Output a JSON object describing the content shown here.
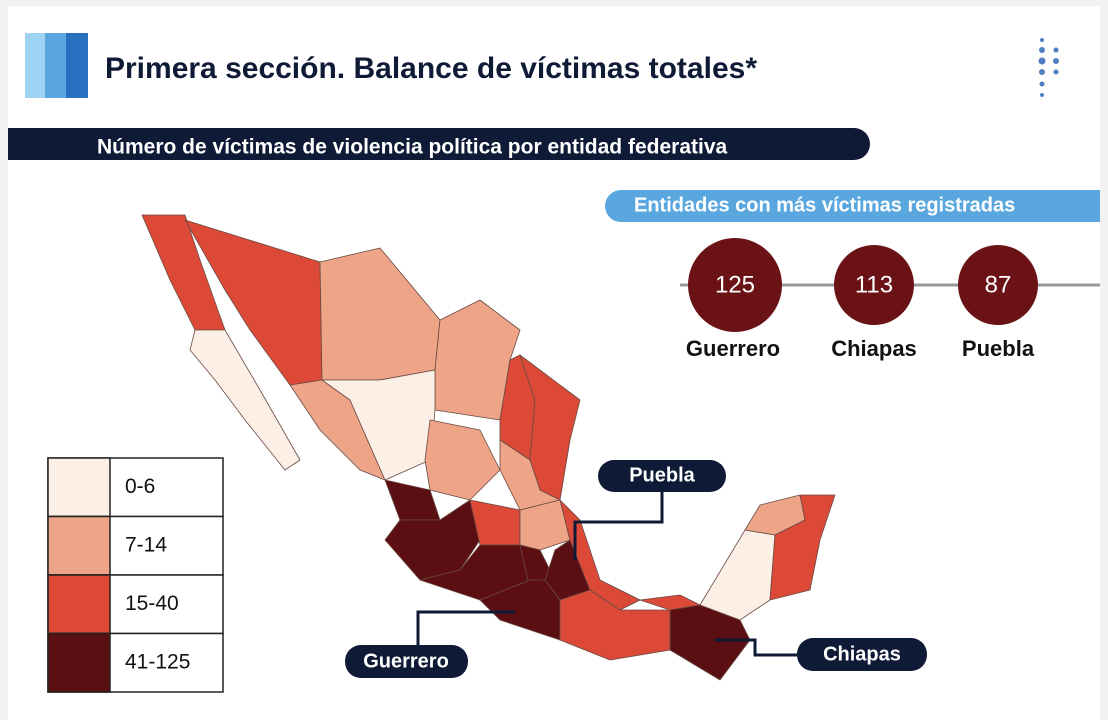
{
  "header": {
    "title": "Primera sección. Balance de víctimas totales*"
  },
  "subtitle": "Número de víctimas de violencia política  por entidad federativa",
  "top_entities": {
    "title": "Entidades con más víctimas registradas",
    "items": [
      {
        "value": 125,
        "label": "Guerrero"
      },
      {
        "value": 113,
        "label": "Chiapas"
      },
      {
        "value": 87,
        "label": "Puebla"
      }
    ]
  },
  "legend": [
    {
      "label": "0-6",
      "color": "#fcefe6"
    },
    {
      "label": "7-14",
      "color": "#eda487"
    },
    {
      "label": "15-40",
      "color": "#dc4a37"
    },
    {
      "label": "41-125",
      "color": "#5c0f12"
    }
  ],
  "map": {
    "callouts": [
      "Puebla",
      "Guerrero",
      "Chiapas"
    ]
  }
}
